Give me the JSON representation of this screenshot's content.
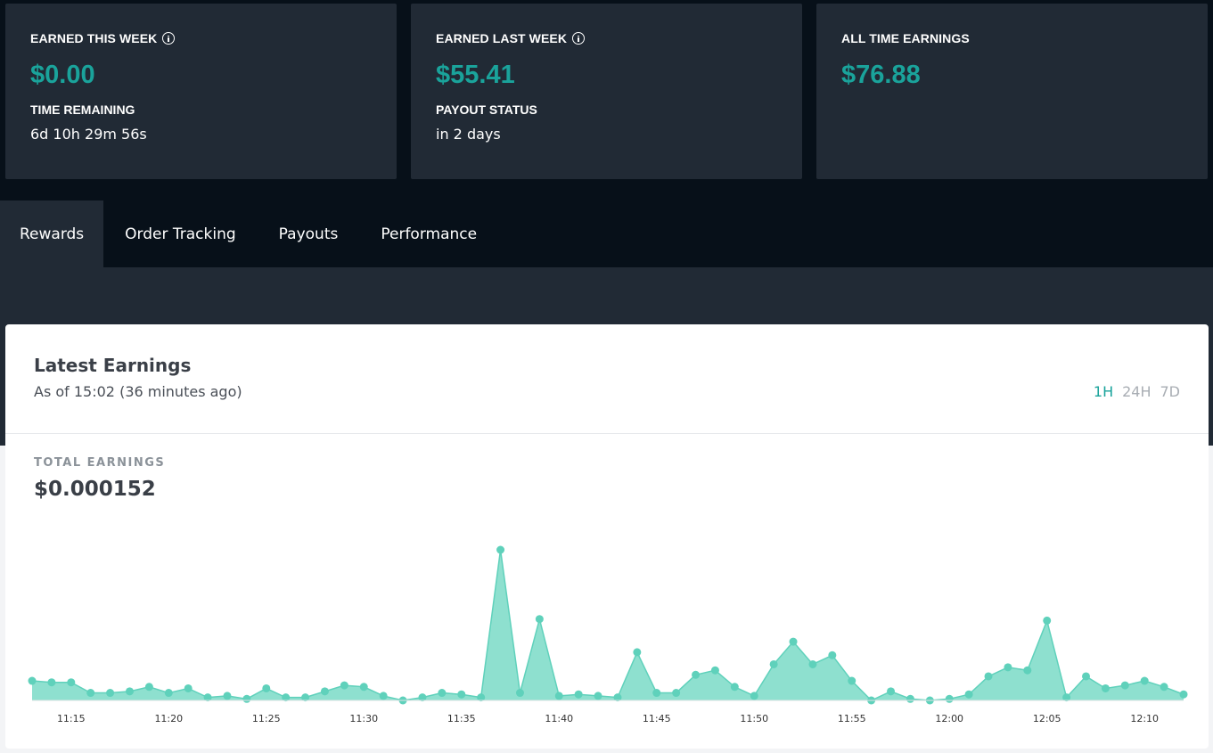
{
  "cards": [
    {
      "label": "EARNED THIS WEEK",
      "info_icon": "info-icon",
      "amount": "$0.00",
      "sub_label": "TIME REMAINING",
      "sub_value": "6d 10h 29m 56s"
    },
    {
      "label": "EARNED LAST WEEK",
      "info_icon": "info-icon",
      "amount": "$55.41",
      "sub_label": "PAYOUT STATUS",
      "sub_value": "in 2 days"
    },
    {
      "label": "ALL TIME EARNINGS",
      "amount": "$76.88"
    }
  ],
  "tabs": [
    {
      "label": "Rewards",
      "active": true
    },
    {
      "label": "Order Tracking",
      "active": false
    },
    {
      "label": "Payouts",
      "active": false
    },
    {
      "label": "Performance",
      "active": false
    }
  ],
  "panel": {
    "title": "Latest Earnings",
    "subtitle": "As of 15:02 (36 minutes ago)",
    "ranges": [
      {
        "label": "1H",
        "active": true
      },
      {
        "label": "24H",
        "active": false
      },
      {
        "label": "7D",
        "active": false
      }
    ],
    "total_label": "TOTAL EARNINGS",
    "total_value": "$0.000152"
  },
  "colors": {
    "accent": "#1aa39b",
    "chart_line": "#5fd1bb",
    "chart_fill": "#8ee0cf",
    "dark_bg": "#071019",
    "card_bg": "#212a35"
  },
  "chart_data": {
    "type": "area",
    "xlabel": "",
    "ylabel": "",
    "x_start": "11:13",
    "x_end": "12:12",
    "x_ticks": [
      "11:15",
      "11:20",
      "11:25",
      "11:30",
      "11:35",
      "11:40",
      "11:45",
      "11:50",
      "11:55",
      "12:00",
      "12:05",
      "12:10"
    ],
    "grid": false,
    "legend": "none",
    "series": [
      {
        "values": [
          13,
          12,
          12,
          5,
          5,
          6,
          9,
          5,
          8,
          2,
          3,
          1,
          8,
          2,
          2,
          6,
          10,
          9,
          3,
          0,
          2,
          5,
          4,
          2,
          100,
          5,
          54,
          3,
          4,
          3,
          2,
          32,
          5,
          5,
          17,
          20,
          9,
          3,
          24,
          39,
          24,
          30,
          13,
          0,
          6,
          1,
          0,
          1,
          4,
          16,
          22,
          20,
          53,
          2,
          16,
          8,
          10,
          13,
          9,
          4
        ]
      }
    ]
  }
}
